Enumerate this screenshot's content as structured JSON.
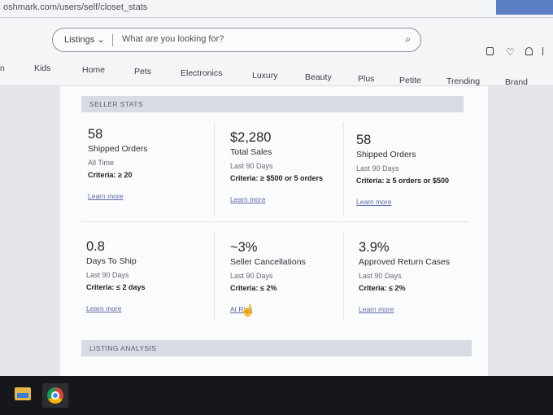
{
  "browser": {
    "url": "oshmark.com/users/self/closet_stats"
  },
  "search": {
    "category_label": "Listings",
    "placeholder": "What are you looking for?"
  },
  "nav": [
    "n",
    "Kids",
    "Home",
    "Pets",
    "Electronics",
    "Luxury",
    "Beauty",
    "Plus",
    "Petite",
    "Trending",
    "Brand"
  ],
  "sections": {
    "seller_stats": "SELLER STATS",
    "listing_analysis": "LISTING ANALYSIS"
  },
  "stats": [
    {
      "value": "58",
      "title": "Shipped Orders",
      "period": "All Time",
      "criteria": "Criteria: ≥ 20",
      "link": "Learn more"
    },
    {
      "value": "$2,280",
      "title": "Total Sales",
      "period": "Last 90 Days",
      "criteria": "Criteria: ≥ $500 or 5 orders",
      "link": "Learn more"
    },
    {
      "value": "58",
      "title": "Shipped Orders",
      "period": "Last 90 Days",
      "criteria": "Criteria: ≥ 5 orders or $500",
      "link": "Learn more"
    },
    {
      "value": "0.8",
      "title": "Days To Ship",
      "period": "Last 90 Days",
      "criteria": "Criteria: ≤ 2 days",
      "link": "Learn more"
    },
    {
      "value": "~3%",
      "title": "Seller Cancellations",
      "period": "Last 90 Days",
      "criteria": "Criteria: ≤ 2%",
      "link": "At Rink"
    },
    {
      "value": "3.9%",
      "title": "Approved Return Cases",
      "period": "Last 90 Days",
      "criteria": "Criteria: ≤ 2%",
      "link": "Learn more"
    }
  ],
  "colors": {
    "panel": "#fafbfc",
    "section_bar": "#d7dbe3",
    "link": "#5c6aa5",
    "taskbar": "#16171a"
  },
  "icons": [
    "search-icon",
    "shopping-bag-icon",
    "heart-icon",
    "bell-icon",
    "file-explorer-icon",
    "chrome-icon",
    "hand-cursor-icon"
  ]
}
